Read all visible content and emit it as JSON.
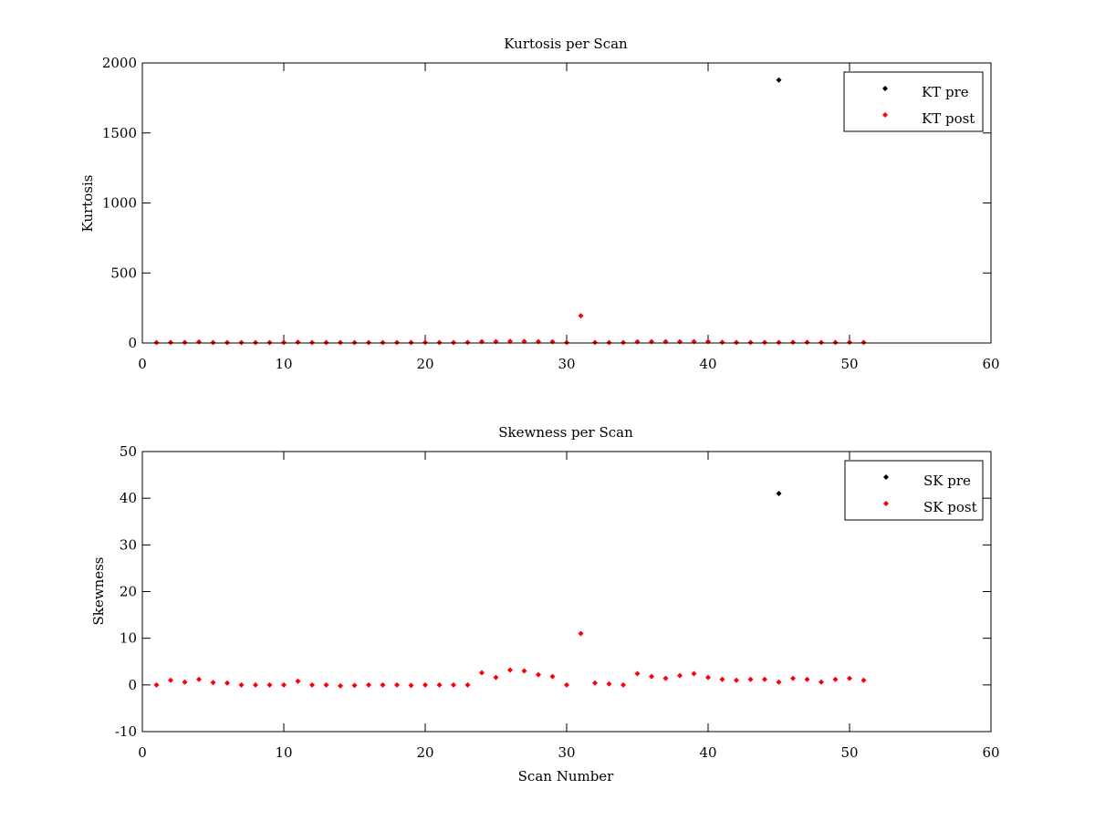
{
  "chart_data": [
    {
      "type": "scatter",
      "title": "Kurtosis per Scan",
      "xlabel": "",
      "ylabel": "Kurtosis",
      "xlim": [
        0,
        60
      ],
      "ylim": [
        0,
        2000
      ],
      "xticks": [
        "0",
        "10",
        "20",
        "30",
        "40",
        "50",
        "60"
      ],
      "yticks": [
        "0",
        "500",
        "1000",
        "1500",
        "2000"
      ],
      "grid": false,
      "legend_position": "top-right",
      "series": [
        {
          "name": "KT pre",
          "color": "#000000",
          "x": [
            45
          ],
          "y": [
            1878
          ]
        },
        {
          "name": "KT post",
          "color": "#ff0000",
          "x": [
            1,
            2,
            3,
            4,
            5,
            6,
            7,
            8,
            9,
            10,
            11,
            12,
            13,
            14,
            15,
            16,
            17,
            18,
            19,
            20,
            21,
            22,
            23,
            24,
            25,
            26,
            27,
            28,
            29,
            30,
            31,
            32,
            33,
            34,
            35,
            36,
            37,
            38,
            39,
            40,
            41,
            42,
            43,
            44,
            45,
            46,
            47,
            48,
            49,
            50,
            51
          ],
          "y": [
            3,
            4,
            4,
            8,
            3,
            3,
            3,
            3,
            3,
            4,
            6,
            3,
            3,
            3,
            3,
            3,
            3,
            3,
            3,
            4,
            3,
            3,
            4,
            10,
            10,
            12,
            11,
            10,
            9,
            3,
            195,
            4,
            3,
            3,
            9,
            10,
            10,
            9,
            10,
            10,
            5,
            4,
            4,
            4,
            4,
            5,
            5,
            4,
            4,
            5,
            4
          ]
        }
      ]
    },
    {
      "type": "scatter",
      "title": "Skewness per Scan",
      "xlabel": "Scan Number",
      "ylabel": "Skewness",
      "xlim": [
        0,
        60
      ],
      "ylim": [
        -10,
        50
      ],
      "xticks": [
        "0",
        "10",
        "20",
        "30",
        "40",
        "50",
        "60"
      ],
      "yticks": [
        "-10",
        "0",
        "10",
        "20",
        "30",
        "40",
        "50"
      ],
      "grid": false,
      "legend_position": "top-right",
      "series": [
        {
          "name": "SK pre",
          "color": "#000000",
          "x": [
            45
          ],
          "y": [
            41
          ]
        },
        {
          "name": "SK post",
          "color": "#ff0000",
          "x": [
            1,
            2,
            3,
            4,
            5,
            6,
            7,
            8,
            9,
            10,
            11,
            12,
            13,
            14,
            15,
            16,
            17,
            18,
            19,
            20,
            21,
            22,
            23,
            24,
            25,
            26,
            27,
            28,
            29,
            30,
            31,
            32,
            33,
            34,
            35,
            36,
            37,
            38,
            39,
            40,
            41,
            42,
            43,
            44,
            45,
            46,
            47,
            48,
            49,
            50,
            51
          ],
          "y": [
            0,
            1,
            0.6,
            1.2,
            0.5,
            0.4,
            0,
            0,
            0,
            0,
            0.8,
            0,
            0,
            -0.2,
            -0.1,
            0,
            0,
            0,
            -0.1,
            0,
            0,
            0,
            0,
            2.6,
            1.6,
            3.2,
            3,
            2.2,
            1.8,
            0,
            11,
            0.4,
            0.2,
            0,
            2.4,
            1.8,
            1.4,
            2,
            2.4,
            1.6,
            1.2,
            1,
            1.2,
            1.2,
            0.6,
            1.4,
            1.2,
            0.6,
            1.2,
            1.4,
            1
          ]
        }
      ]
    }
  ]
}
